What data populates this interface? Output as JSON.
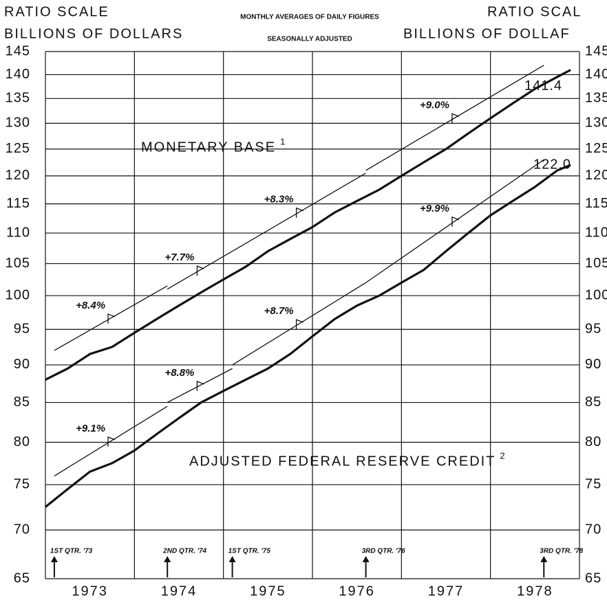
{
  "chart_data": {
    "type": "line",
    "title": "MONTHLY AVERAGES OF DAILY FIGURES",
    "subtitle": "SEASONALLY ADJUSTED",
    "y_label_left": [
      "RATIO SCALE",
      "BILLIONS OF DOLLARS"
    ],
    "y_label_right": [
      "RATIO SCAL",
      "BILLIONS OF DOLLAF"
    ],
    "log": true,
    "grid": true,
    "xlim": [
      1973,
      1979
    ],
    "xticks": [
      1973,
      1974,
      1975,
      1976,
      1977,
      1978,
      1979
    ],
    "categories": [
      "1973",
      "1974",
      "1975",
      "1976",
      "1977",
      "1978"
    ],
    "ylim": [
      65,
      145
    ],
    "yticks": [
      65,
      70,
      75,
      80,
      85,
      90,
      95,
      100,
      105,
      110,
      115,
      120,
      125,
      130,
      135,
      140,
      145
    ],
    "x": [
      1973.0,
      1973.25,
      1973.5,
      1973.75,
      1974.0,
      1974.25,
      1974.5,
      1974.75,
      1975.0,
      1975.25,
      1975.5,
      1975.75,
      1976.0,
      1976.25,
      1976.5,
      1976.75,
      1977.0,
      1977.25,
      1977.5,
      1977.75,
      1978.0,
      1978.25,
      1978.5,
      1978.75,
      1978.9
    ],
    "series": [
      {
        "name": "MONETARY BASE",
        "footnote": "1",
        "color": "#111",
        "end_label": "141.4",
        "values": [
          88,
          89.5,
          91.5,
          92.5,
          94.5,
          96.5,
          98.5,
          100.5,
          102.5,
          104.5,
          107,
          109,
          111,
          113.5,
          115.5,
          117.5,
          120,
          122.5,
          125,
          128,
          131,
          134,
          137,
          139.5,
          141
        ],
        "trends": [
          {
            "label": "+8.4%",
            "x": [
              1973.1,
              1974.37
            ],
            "values": [
              92,
              101.5
            ]
          },
          {
            "label": "+7.7%",
            "x": [
              1974.37,
              1975.1
            ],
            "values": [
              101,
              107
            ]
          },
          {
            "label": "+8.3%",
            "x": [
              1975.1,
              1976.6
            ],
            "values": [
              107,
              120.5
            ]
          },
          {
            "label": "+9.0%",
            "x": [
              1976.6,
              1978.6
            ],
            "values": [
              121,
              142
            ]
          }
        ]
      },
      {
        "name": "ADJUSTED FEDERAL RESERVE CREDIT",
        "footnote": "2",
        "color": "#111",
        "end_label": "122.0",
        "values": [
          72.5,
          74.5,
          76.5,
          77.5,
          79,
          81,
          83,
          85,
          86.5,
          88,
          89.5,
          91.5,
          94,
          96.5,
          98.5,
          100,
          102,
          104,
          107,
          110,
          113,
          115.5,
          118,
          121,
          122
        ],
        "trends": [
          {
            "label": "+9.1%",
            "x": [
              1973.1,
              1974.37
            ],
            "values": [
              76,
              84.5
            ]
          },
          {
            "label": "+8.8%",
            "x": [
              1974.37,
              1975.1
            ],
            "values": [
              85,
              89.5
            ]
          },
          {
            "label": "+8.7%",
            "x": [
              1975.1,
              1976.6
            ],
            "values": [
              90,
              102
            ]
          },
          {
            "label": "+9.9%",
            "x": [
              1976.6,
              1978.6
            ],
            "values": [
              102,
              123
            ]
          }
        ]
      }
    ],
    "annotations": [
      {
        "label": "1ST QTR. '73",
        "x": 1973.1
      },
      {
        "label": "2ND QTR. '74",
        "x": 1974.37
      },
      {
        "label": "1ST QTR. '75",
        "x": 1975.1
      },
      {
        "label": "3RD QTR. '76",
        "x": 1976.6
      },
      {
        "label": "3RD QTR. '78",
        "x": 1978.6
      }
    ]
  }
}
